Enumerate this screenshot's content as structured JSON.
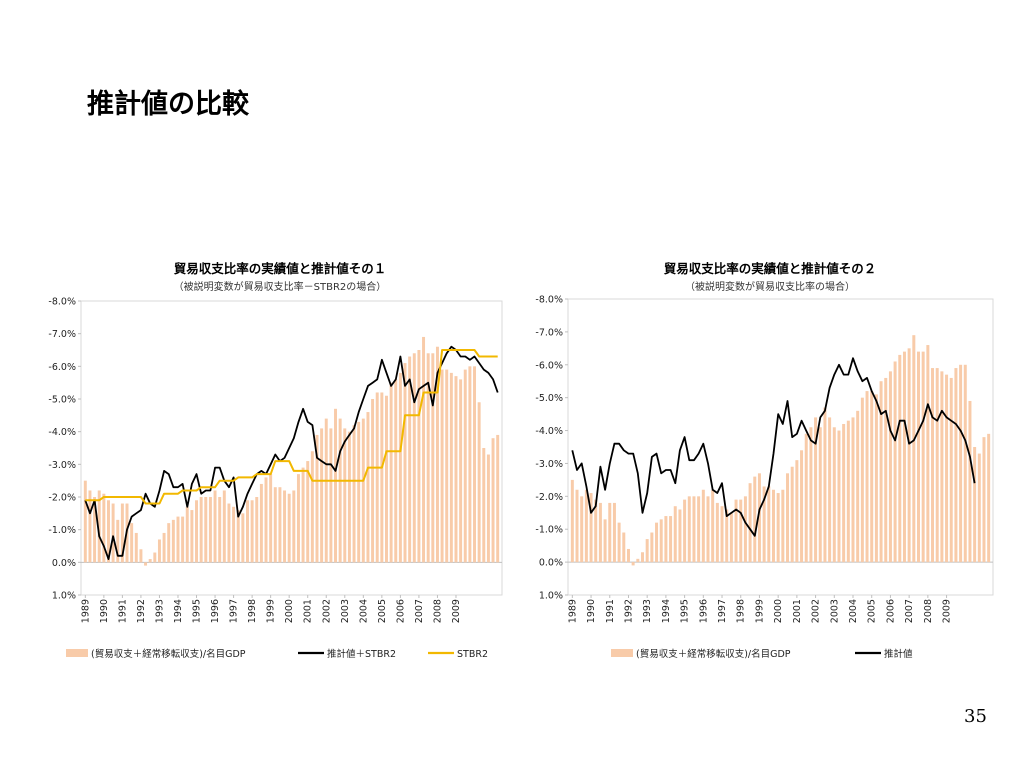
{
  "slide": {
    "title": "推計値の比較",
    "page_number": "35"
  },
  "chart_data": [
    {
      "type": "bar+line",
      "title": "貿易収支比率の実績値と推計値その１",
      "subtitle": "（被説明変数が貿易収支比率－STBR2の場合）",
      "yaxis": {
        "min": -8.0,
        "max": 1.0,
        "reversed": true,
        "step": 1.0,
        "tick_labels": [
          "-8.0%",
          "-7.0%",
          "-6.0%",
          "-5.0%",
          "-4.0%",
          "-3.0%",
          "-2.0%",
          "-1.0%",
          "0.0%",
          "1.0%"
        ]
      },
      "year_labels": [
        "1989",
        "1990",
        "1991",
        "1992",
        "1993",
        "1994",
        "1995",
        "1996",
        "1997",
        "1998",
        "1999",
        "2000",
        "2001",
        "2002",
        "2003",
        "2004",
        "2005",
        "2006",
        "2007",
        "2008",
        "2009"
      ],
      "start_year": 1989,
      "grid": false,
      "legend_position": "bottom",
      "series": [
        {
          "name": "(貿易収支＋経常移転収支)/名目GDP",
          "type": "bar",
          "color": "#f8cba9",
          "values": [
            -2.5,
            -2.2,
            -2.0,
            -2.2,
            -2.1,
            -1.9,
            -1.8,
            -1.3,
            -1.8,
            -1.8,
            -1.2,
            -0.9,
            -0.4,
            0.1,
            -0.1,
            -0.3,
            -0.7,
            -0.9,
            -1.2,
            -1.3,
            -1.4,
            -1.4,
            -1.7,
            -1.6,
            -1.9,
            -2.0,
            -2.0,
            -2.0,
            -2.2,
            -2.0,
            -2.2,
            -1.8,
            -1.7,
            -1.6,
            -1.5,
            -1.9,
            -1.9,
            -2.0,
            -2.4,
            -2.6,
            -2.7,
            -2.3,
            -2.3,
            -2.2,
            -2.1,
            -2.2,
            -2.7,
            -2.9,
            -3.1,
            -3.4,
            -3.9,
            -4.1,
            -4.4,
            -4.1,
            -4.7,
            -4.4,
            -4.1,
            -4.0,
            -4.2,
            -4.3,
            -4.4,
            -4.6,
            -5.0,
            -5.2,
            -5.2,
            -5.1,
            -5.5,
            -5.6,
            -5.8,
            -6.1,
            -6.3,
            -6.4,
            -6.5,
            -6.9,
            -6.4,
            -6.4,
            -6.6,
            -5.9,
            -5.9,
            -5.8,
            -5.7,
            -5.6,
            -5.9,
            -6.0,
            -6.0,
            -4.9,
            -3.5,
            -3.3,
            -3.8,
            -3.9
          ]
        },
        {
          "name": "推計値＋STBR2",
          "type": "line",
          "color": "#000000",
          "values": [
            -1.9,
            -1.5,
            -1.9,
            -0.8,
            -0.5,
            -0.1,
            -0.8,
            -0.2,
            -0.2,
            -1.0,
            -1.4,
            -1.5,
            -1.6,
            -2.1,
            -1.8,
            -1.7,
            -2.2,
            -2.8,
            -2.7,
            -2.3,
            -2.3,
            -2.4,
            -1.7,
            -2.4,
            -2.7,
            -2.1,
            -2.2,
            -2.2,
            -2.9,
            -2.9,
            -2.5,
            -2.3,
            -2.6,
            -1.4,
            -1.7,
            -2.1,
            -2.4,
            -2.7,
            -2.8,
            -2.7,
            -3.0,
            -3.3,
            -3.1,
            -3.2,
            -3.5,
            -3.8,
            -4.3,
            -4.7,
            -4.3,
            -4.2,
            -3.2,
            -3.1,
            -3.0,
            -3.0,
            -2.8,
            -3.4,
            -3.7,
            -3.9,
            -4.1,
            -4.6,
            -5.0,
            -5.4,
            -5.5,
            -5.6,
            -6.2,
            -5.8,
            -5.4,
            -5.6,
            -6.3,
            -5.4,
            -5.6,
            -4.9,
            -5.3,
            -5.4,
            -5.5,
            -4.8,
            -5.8,
            -6.1,
            -6.4,
            -6.6,
            -6.5,
            -6.3,
            -6.3,
            -6.2,
            -6.3,
            -6.1,
            -5.9,
            -5.8,
            -5.6,
            -5.2
          ]
        },
        {
          "name": "STBR2",
          "type": "line",
          "color": "#f2b800",
          "values": [
            -1.9,
            -1.9,
            -1.9,
            -1.9,
            -2.0,
            -2.0,
            -2.0,
            -2.0,
            -2.0,
            -2.0,
            -2.0,
            -2.0,
            -2.0,
            -1.8,
            -1.8,
            -1.8,
            -1.8,
            -2.1,
            -2.1,
            -2.1,
            -2.1,
            -2.2,
            -2.2,
            -2.2,
            -2.2,
            -2.3,
            -2.3,
            -2.3,
            -2.3,
            -2.5,
            -2.5,
            -2.5,
            -2.5,
            -2.6,
            -2.6,
            -2.6,
            -2.6,
            -2.7,
            -2.7,
            -2.7,
            -2.7,
            -3.1,
            -3.1,
            -3.1,
            -3.1,
            -2.8,
            -2.8,
            -2.8,
            -2.8,
            -2.5,
            -2.5,
            -2.5,
            -2.5,
            -2.5,
            -2.5,
            -2.5,
            -2.5,
            -2.5,
            -2.5,
            -2.5,
            -2.5,
            -2.9,
            -2.9,
            -2.9,
            -2.9,
            -3.4,
            -3.4,
            -3.4,
            -3.4,
            -4.5,
            -4.5,
            -4.5,
            -4.5,
            -5.2,
            -5.2,
            -5.2,
            -5.2,
            -6.5,
            -6.5,
            -6.5,
            -6.5,
            -6.5,
            -6.5,
            -6.5,
            -6.5,
            -6.3,
            -6.3,
            -6.3,
            -6.3,
            -6.3
          ]
        }
      ]
    },
    {
      "type": "bar+line",
      "title": "貿易収支比率の実績値と推計値その２",
      "subtitle": "（被説明変数が貿易収支比率の場合）",
      "yaxis": {
        "min": -8.0,
        "max": 1.0,
        "reversed": true,
        "step": 1.0,
        "tick_labels": [
          "-8.0%",
          "-7.0%",
          "-6.0%",
          "-5.0%",
          "-4.0%",
          "-3.0%",
          "-2.0%",
          "-1.0%",
          "0.0%",
          "1.0%"
        ]
      },
      "year_labels": [
        "1989",
        "1990",
        "1991",
        "1992",
        "1993",
        "1994",
        "1995",
        "1996",
        "1997",
        "1998",
        "1999",
        "2000",
        "2001",
        "2002",
        "2003",
        "2004",
        "2005",
        "2006",
        "2007",
        "2008",
        "2009"
      ],
      "start_year": 1989,
      "grid": false,
      "legend_position": "bottom",
      "series": [
        {
          "name": "(貿易収支＋経常移転収支)/名目GDP",
          "type": "bar",
          "color": "#f8cba9",
          "values": [
            -2.5,
            -2.2,
            -2.0,
            -2.2,
            -2.1,
            -1.9,
            -1.8,
            -1.3,
            -1.8,
            -1.8,
            -1.2,
            -0.9,
            -0.4,
            0.1,
            -0.1,
            -0.3,
            -0.7,
            -0.9,
            -1.2,
            -1.3,
            -1.4,
            -1.4,
            -1.7,
            -1.6,
            -1.9,
            -2.0,
            -2.0,
            -2.0,
            -2.2,
            -2.0,
            -2.2,
            -1.8,
            -1.7,
            -1.6,
            -1.5,
            -1.9,
            -1.9,
            -2.0,
            -2.4,
            -2.6,
            -2.7,
            -2.3,
            -2.3,
            -2.2,
            -2.1,
            -2.2,
            -2.7,
            -2.9,
            -3.1,
            -3.4,
            -3.9,
            -4.1,
            -4.4,
            -4.1,
            -4.7,
            -4.4,
            -4.1,
            -4.0,
            -4.2,
            -4.3,
            -4.4,
            -4.6,
            -5.0,
            -5.2,
            -5.2,
            -5.1,
            -5.5,
            -5.6,
            -5.8,
            -6.1,
            -6.3,
            -6.4,
            -6.5,
            -6.9,
            -6.4,
            -6.4,
            -6.6,
            -5.9,
            -5.9,
            -5.8,
            -5.7,
            -5.6,
            -5.9,
            -6.0,
            -6.0,
            -4.9,
            -3.5,
            -3.3,
            -3.8,
            -3.9
          ]
        },
        {
          "name": "推計値",
          "type": "line",
          "color": "#000000",
          "values": [
            -3.4,
            -2.8,
            -3.0,
            -2.3,
            -1.5,
            -1.7,
            -2.9,
            -2.2,
            -3.0,
            -3.6,
            -3.6,
            -3.4,
            -3.3,
            -3.3,
            -2.7,
            -1.5,
            -2.1,
            -3.2,
            -3.3,
            -2.7,
            -2.8,
            -2.8,
            -2.4,
            -3.4,
            -3.8,
            -3.1,
            -3.1,
            -3.3,
            -3.6,
            -3.0,
            -2.2,
            -2.1,
            -2.4,
            -1.4,
            -1.5,
            -1.6,
            -1.5,
            -1.2,
            -1.0,
            -0.8,
            -1.6,
            -1.9,
            -2.3,
            -3.3,
            -4.5,
            -4.2,
            -4.9,
            -3.8,
            -3.9,
            -4.3,
            -4.0,
            -3.7,
            -3.6,
            -4.4,
            -4.6,
            -5.3,
            -5.7,
            -6.0,
            -5.7,
            -5.7,
            -6.2,
            -5.8,
            -5.5,
            -5.6,
            -5.2,
            -4.9,
            -4.5,
            -4.6,
            -4.0,
            -3.7,
            -4.3,
            -4.3,
            -3.6,
            -3.7,
            -4.0,
            -4.3,
            -4.8,
            -4.4,
            -4.3,
            -4.6,
            -4.4,
            -4.3,
            -4.2,
            -4.0,
            -3.7,
            -3.2,
            -2.4
          ]
        }
      ]
    }
  ]
}
